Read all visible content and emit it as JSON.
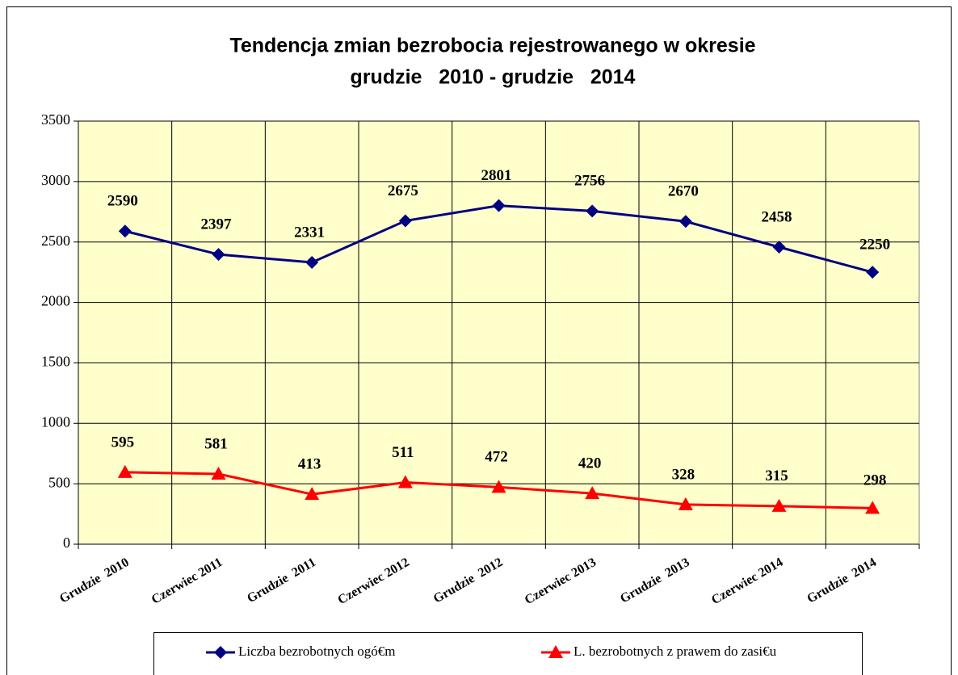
{
  "chart_data": {
    "type": "line",
    "title": [
      "Tendencja zmian bezrobocia rejestrowanego w okresie",
      "grudzie   2010 - grudzie   2014"
    ],
    "categories": [
      "Grudzie  2010",
      "Czerwiec 2011",
      "Grudzie  2011",
      "Czerwiec 2012",
      "Grudzie  2012",
      "Czerwiec 2013",
      "Grudzie  2013",
      "Czerwiec 2014",
      "Grudzie  2014"
    ],
    "series": [
      {
        "name": "Liczba bezrobotnych ogó€m",
        "color": "#000080",
        "marker": "diamond",
        "values": [
          2590,
          2397,
          2331,
          2675,
          2801,
          2756,
          2670,
          2458,
          2250
        ]
      },
      {
        "name": "L. bezrobotnych z prawem do zasi€u",
        "color": "#ff0000",
        "marker": "triangle",
        "values": [
          595,
          581,
          413,
          511,
          472,
          420,
          328,
          315,
          298
        ]
      }
    ],
    "ylim": [
      0,
      3500
    ],
    "yticks": [
      0,
      500,
      1000,
      1500,
      2000,
      2500,
      3000,
      3500
    ],
    "grid": true,
    "legend": "bottom",
    "background": "#ffffcc"
  }
}
